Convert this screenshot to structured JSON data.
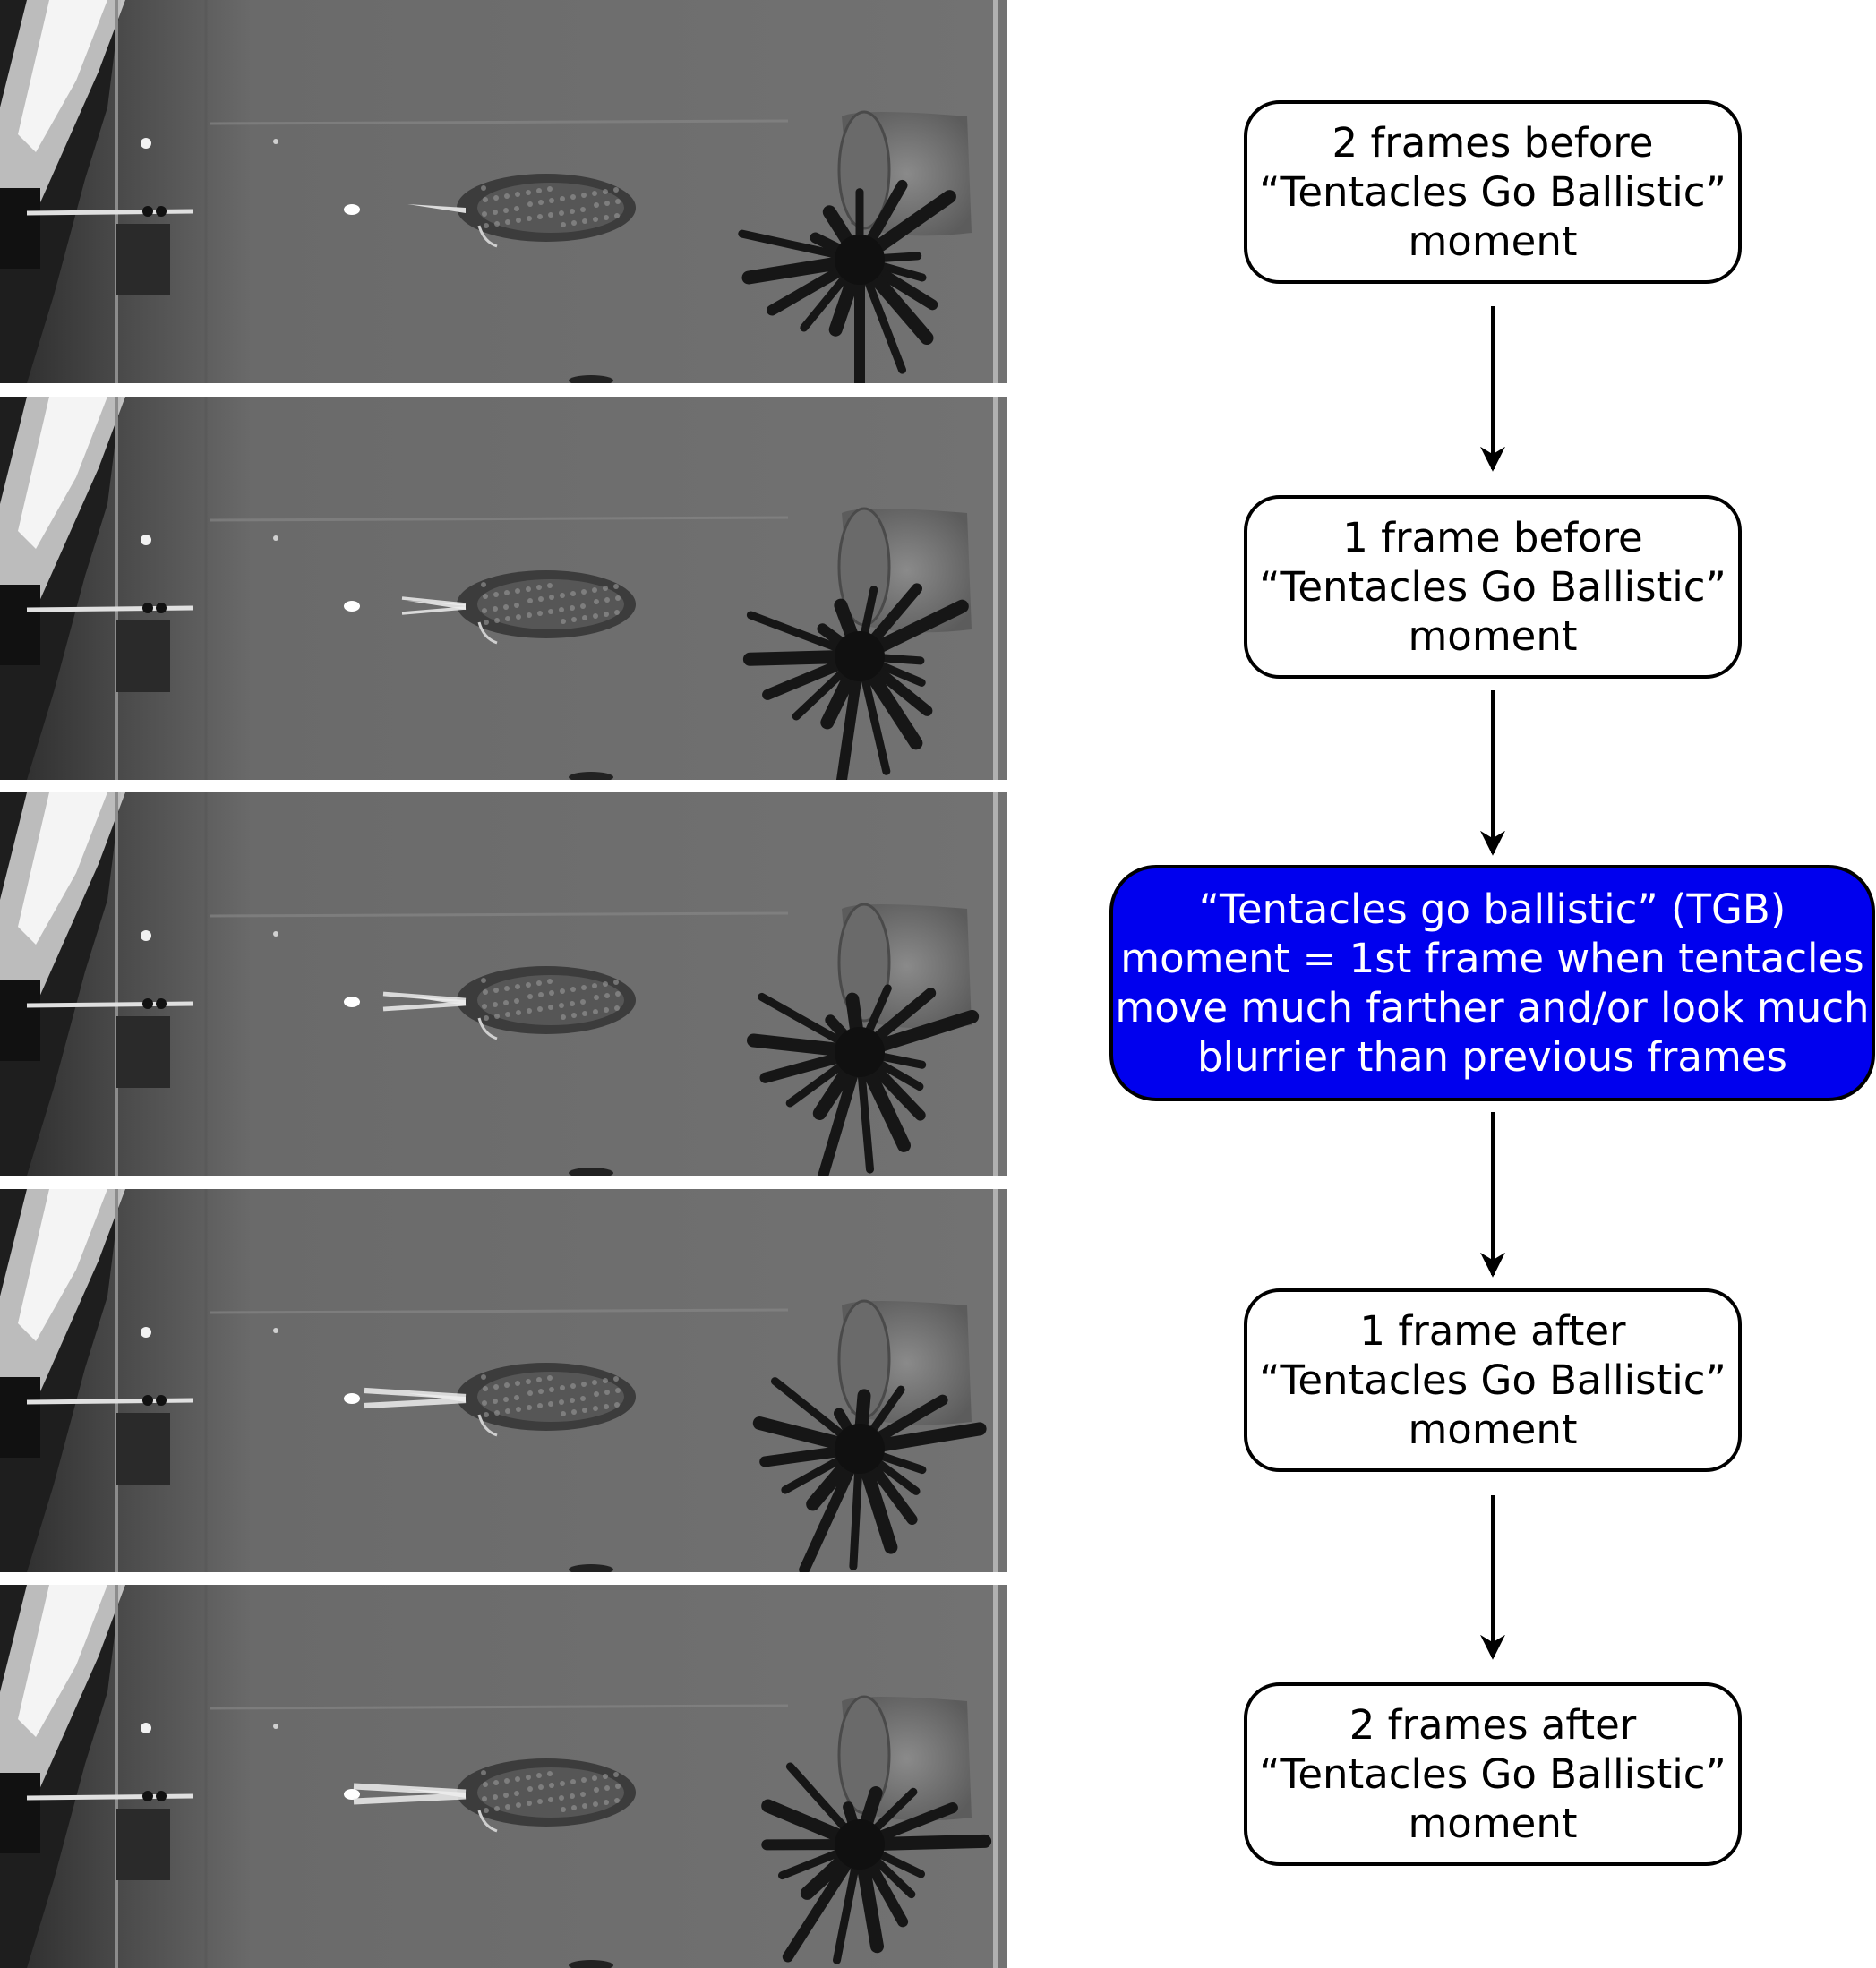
{
  "flow_steps": [
    {
      "id": "minus2",
      "lines": [
        "2 frames before",
        "“Tentacles Go Ballistic”",
        "moment"
      ],
      "highlight": false
    },
    {
      "id": "minus1",
      "lines": [
        "1 frame before",
        "“Tentacles Go Ballistic”",
        "moment"
      ],
      "highlight": false
    },
    {
      "id": "tgb",
      "lines": [
        "“Tentacles go ballistic” (TGB)",
        "moment = 1st frame when tentacles",
        "move much farther and/or look much",
        "blurrier than previous frames"
      ],
      "highlight": true
    },
    {
      "id": "plus1",
      "lines": [
        "1 frame after",
        "“Tentacles Go Ballistic”",
        "moment"
      ],
      "highlight": false
    },
    {
      "id": "plus2",
      "lines": [
        "2 frames after",
        "“Tentacles Go Ballistic”",
        "moment"
      ],
      "highlight": false
    }
  ],
  "frames": [
    {
      "id": "frame-minus2",
      "tentacle_extension": 0.0
    },
    {
      "id": "frame-minus1",
      "tentacle_extension": 0.1
    },
    {
      "id": "frame-tgb",
      "tentacle_extension": 0.45
    },
    {
      "id": "frame-plus1",
      "tentacle_extension": 0.8
    },
    {
      "id": "frame-plus2",
      "tentacle_extension": 1.0
    }
  ],
  "colors": {
    "highlight_fill": "#0000ee",
    "highlight_text": "#ffffff",
    "box_border": "#000000",
    "arrow": "#000000"
  }
}
